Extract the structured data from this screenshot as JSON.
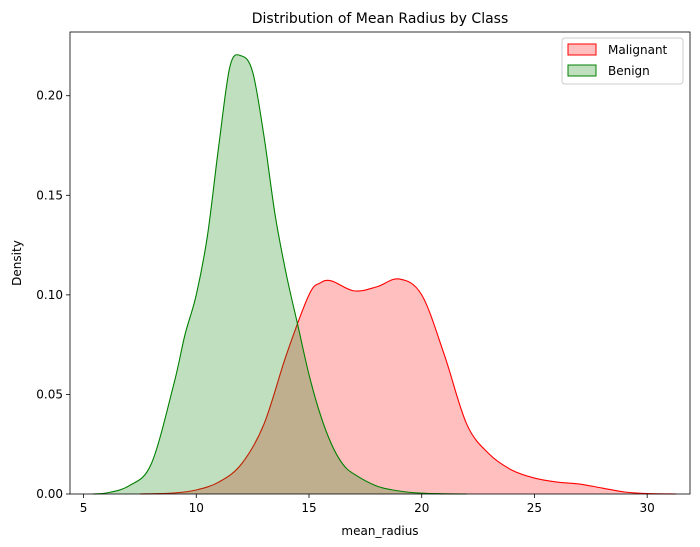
{
  "chart_data": {
    "type": "area",
    "title": "Distribution of Mean Radius by Class",
    "xlabel": "mean_radius",
    "ylabel": "Density",
    "xlim": [
      4.4,
      31.9
    ],
    "ylim": [
      0,
      0.232
    ],
    "xticks": [
      5,
      10,
      15,
      20,
      25,
      30
    ],
    "yticks": [
      0.0,
      0.05,
      0.1,
      0.15,
      0.2
    ],
    "grid": false,
    "legend_position": "top-right",
    "series": [
      {
        "name": "Malignant",
        "color": "#ff0000",
        "fill": "#ffbfbf",
        "x": [
          7.5,
          9,
          10,
          11,
          12,
          13,
          14,
          15,
          15.5,
          16,
          17,
          18,
          19,
          20,
          21,
          22,
          23,
          24,
          25,
          26,
          27,
          28,
          29,
          30,
          31.3
        ],
        "y": [
          0.0,
          0.0005,
          0.002,
          0.006,
          0.015,
          0.035,
          0.07,
          0.1,
          0.106,
          0.107,
          0.102,
          0.104,
          0.108,
          0.1,
          0.07,
          0.035,
          0.02,
          0.012,
          0.008,
          0.006,
          0.005,
          0.003,
          0.001,
          0.0002,
          0.0
        ]
      },
      {
        "name": "Benign",
        "color": "#008000",
        "fill": "#bfdfbf",
        "x": [
          5.4,
          6,
          7,
          8,
          9,
          9.5,
          10,
          10.5,
          11,
          11.5,
          12,
          12.5,
          13,
          13.5,
          14,
          14.5,
          15,
          15.5,
          16,
          16.5,
          17,
          18,
          19,
          20,
          21,
          22
        ],
        "y": [
          0.0,
          0.0005,
          0.004,
          0.015,
          0.055,
          0.08,
          0.1,
          0.13,
          0.175,
          0.215,
          0.22,
          0.212,
          0.18,
          0.14,
          0.11,
          0.085,
          0.06,
          0.04,
          0.025,
          0.015,
          0.01,
          0.004,
          0.0015,
          0.0004,
          0.0001,
          0.0
        ]
      }
    ]
  }
}
